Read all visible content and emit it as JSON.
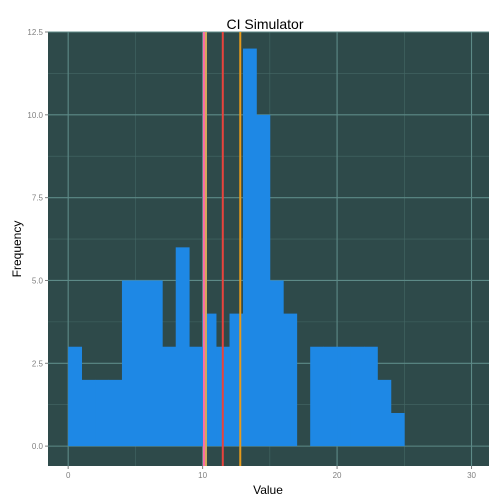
{
  "chart_data": {
    "type": "bar",
    "title": "CI Simulator",
    "xlabel": "Value",
    "ylabel": "Frequency",
    "xlim": [
      -1.5,
      31.3
    ],
    "ylim": [
      -0.6,
      12.5
    ],
    "x_ticks": [
      0,
      10,
      20,
      30
    ],
    "x_tick_labels": [
      "0",
      "10",
      "20",
      "30"
    ],
    "y_ticks": [
      0,
      2.5,
      5,
      7.5,
      10,
      12.5
    ],
    "y_tick_labels": [
      "0.0",
      "2.5",
      "5.0",
      "7.5",
      "10.0",
      "12.5"
    ],
    "grid": true,
    "bin_width": 1,
    "bins": [
      {
        "x0": 0,
        "count": 3
      },
      {
        "x0": 1,
        "count": 2
      },
      {
        "x0": 2,
        "count": 2
      },
      {
        "x0": 3,
        "count": 2
      },
      {
        "x0": 4,
        "count": 5
      },
      {
        "x0": 5,
        "count": 5
      },
      {
        "x0": 6,
        "count": 5
      },
      {
        "x0": 7,
        "count": 3
      },
      {
        "x0": 8,
        "count": 6
      },
      {
        "x0": 9,
        "count": 3
      },
      {
        "x0": 10,
        "count": 4
      },
      {
        "x0": 11,
        "count": 3
      },
      {
        "x0": 12,
        "count": 4
      },
      {
        "x0": 13,
        "count": 12
      },
      {
        "x0": 14,
        "count": 10
      },
      {
        "x0": 15,
        "count": 5
      },
      {
        "x0": 16,
        "count": 4
      },
      {
        "x0": 17,
        "count": 0
      },
      {
        "x0": 18,
        "count": 3
      },
      {
        "x0": 19,
        "count": 3
      },
      {
        "x0": 20,
        "count": 3
      },
      {
        "x0": 21,
        "count": 3
      },
      {
        "x0": 22,
        "count": 3
      },
      {
        "x0": 23,
        "count": 2
      },
      {
        "x0": 24,
        "count": 1
      }
    ],
    "vertical_lines": [
      {
        "x": 10.1,
        "color": "#ff6ea8"
      },
      {
        "x": 10.25,
        "color": "#d4a85a"
      },
      {
        "x": 11.5,
        "color": "#e8433c"
      },
      {
        "x": 12.8,
        "color": "#e69a1b"
      }
    ],
    "colors": {
      "panel_background": "#2e4a4a",
      "grid_major": "#5d8a87",
      "grid_minor": "#446866",
      "bar_fill": "#1e88e5"
    }
  }
}
